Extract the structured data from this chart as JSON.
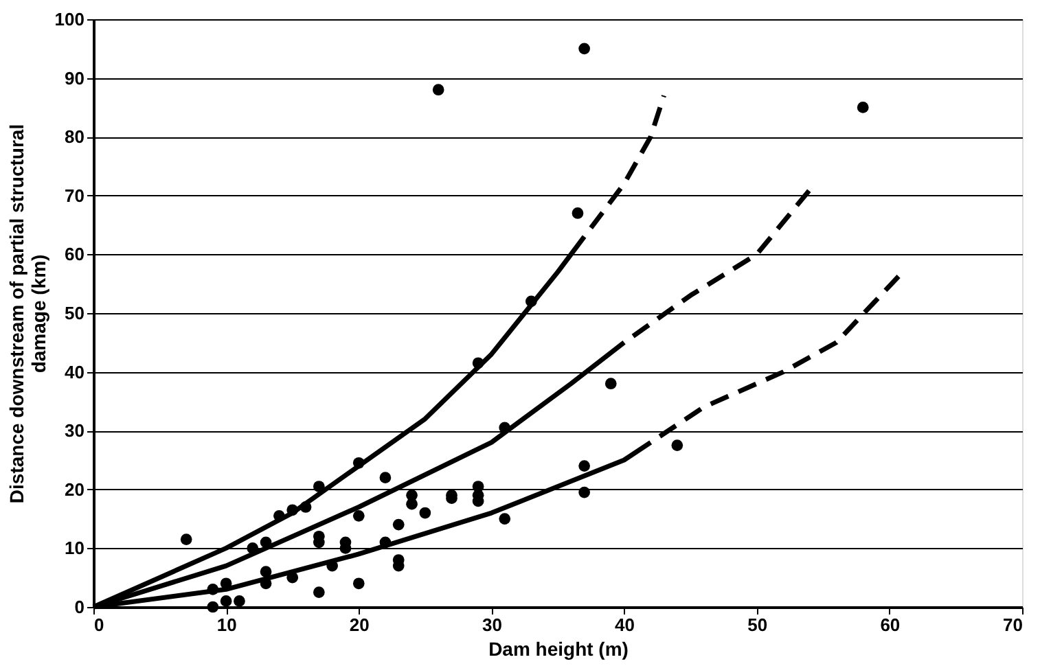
{
  "chart_data": {
    "type": "scatter",
    "xlabel": "Dam height (m)",
    "ylabel": "Distance downstream of partial structural damage (km)",
    "xlim": [
      0,
      70
    ],
    "xticks": [
      0,
      10,
      20,
      30,
      40,
      50,
      60,
      70
    ],
    "ylim": [
      0,
      100
    ],
    "yticks": [
      0,
      10,
      20,
      30,
      40,
      50,
      60,
      70,
      80,
      90,
      100
    ],
    "grid": "y",
    "series": [
      {
        "color": "#000000",
        "marker": "circle",
        "x": [
          26,
          37,
          58,
          36.5,
          33,
          29,
          39,
          31,
          44,
          37,
          37,
          29,
          29,
          29,
          31,
          27,
          27,
          25,
          24,
          24,
          22,
          23,
          22,
          23,
          23,
          20,
          20,
          20,
          19,
          19,
          18,
          17,
          17,
          17,
          17,
          16,
          15,
          14,
          15,
          13,
          13,
          12,
          13,
          10,
          9,
          9,
          10,
          11,
          7
        ],
        "values": [
          88,
          95,
          85,
          67,
          52,
          41.5,
          38,
          30.5,
          27.5,
          24,
          19.5,
          20.5,
          19,
          18,
          15,
          18.5,
          19,
          16,
          17.5,
          19,
          22,
          14,
          11,
          8,
          7,
          24.5,
          15.5,
          4,
          11,
          10,
          7,
          20.5,
          12,
          11,
          2.5,
          17,
          16.5,
          15.5,
          5,
          6,
          4,
          10,
          11,
          4,
          3,
          0,
          1,
          1,
          11.5
        ]
      },
      {
        "type": "line",
        "color": "#000000",
        "line_style": "solid",
        "marker": "none",
        "x": [
          0,
          10,
          15,
          20,
          25,
          30,
          35,
          37
        ],
        "values": [
          0,
          10,
          16,
          24,
          32,
          43,
          57,
          63
        ]
      },
      {
        "type": "line",
        "color": "#000000",
        "line_style": "dashed",
        "marker": "none",
        "x": [
          37,
          40,
          42,
          43
        ],
        "values": [
          63,
          72,
          80,
          87
        ]
      },
      {
        "type": "line",
        "color": "#000000",
        "line_style": "solid",
        "marker": "none",
        "x": [
          0,
          10,
          20,
          30,
          36,
          40
        ],
        "values": [
          0,
          7,
          17,
          28,
          38,
          45
        ]
      },
      {
        "type": "line",
        "color": "#000000",
        "line_style": "dashed",
        "marker": "none",
        "x": [
          40,
          45,
          50,
          54
        ],
        "values": [
          45,
          53,
          60,
          71
        ]
      },
      {
        "type": "line",
        "color": "#000000",
        "line_style": "solid",
        "marker": "none",
        "x": [
          0,
          10,
          20,
          30,
          40,
          42
        ],
        "values": [
          0,
          3,
          9,
          16,
          25,
          28
        ]
      },
      {
        "type": "line",
        "color": "#000000",
        "line_style": "dashed",
        "marker": "none",
        "x": [
          42,
          46,
          52,
          56,
          61
        ],
        "values": [
          28,
          34,
          40,
          45,
          57
        ]
      }
    ]
  }
}
